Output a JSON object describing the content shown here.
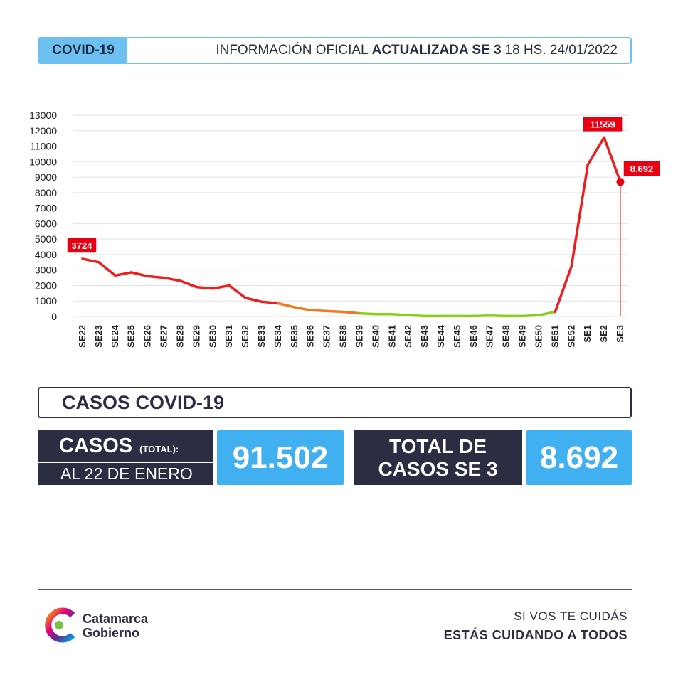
{
  "header": {
    "tag": "COVID-19",
    "text_light_1": "INFORMACIÓN OFICIAL",
    "text_bold": "ACTUALIZADA SE 3",
    "text_light_2": "18 HS. 24/01/2022"
  },
  "chart_data": {
    "type": "line",
    "title": "",
    "xlabel": "",
    "ylabel": "",
    "ylim": [
      0,
      13000
    ],
    "yticks": [
      0,
      1000,
      2000,
      3000,
      4000,
      5000,
      6000,
      7000,
      8000,
      9000,
      10000,
      11000,
      12000,
      13000
    ],
    "grid": true,
    "categories": [
      "SE22",
      "SE23",
      "SE24",
      "SE25",
      "SE26",
      "SE27",
      "SE28",
      "SE29",
      "SE30",
      "SE31",
      "SE32",
      "SE33",
      "SE34",
      "SE35",
      "SE36",
      "SE37",
      "SE38",
      "SE39",
      "SE40",
      "SE41",
      "SE42",
      "SE43",
      "SE44",
      "SE45",
      "SE46",
      "SE47",
      "SE48",
      "SE49",
      "SE50",
      "SE51",
      "SE52",
      "SE1",
      "SE2",
      "SE3"
    ],
    "values": [
      3724,
      3500,
      2650,
      2850,
      2600,
      2500,
      2300,
      1900,
      1800,
      2000,
      1200,
      950,
      850,
      600,
      400,
      350,
      300,
      200,
      150,
      150,
      80,
      30,
      30,
      30,
      30,
      60,
      30,
      30,
      80,
      300,
      3250,
      9800,
      11559,
      8692
    ],
    "annotations": [
      {
        "category": "SE22",
        "label": "3724"
      },
      {
        "category": "SE2",
        "label": "11559"
      },
      {
        "category": "SE3",
        "label": "8.692"
      }
    ],
    "colors": {
      "high": "#f01d1d",
      "mid": "#f07a1d",
      "low": "#8ccc1a",
      "grid": "#e2e2e2",
      "callout": "#e60012"
    }
  },
  "section": {
    "title": "CASOS COVID-19"
  },
  "stats": {
    "casos_label": "CASOS",
    "casos_sub": "(TOTAL):",
    "casos_date": "AL 22 DE ENERO",
    "casos_value": "91.502",
    "total_label_1": "TOTAL DE",
    "total_label_2": "CASOS SE 3",
    "total_value": "8.692"
  },
  "footer": {
    "logo_line1": "Catamarca",
    "logo_line2": "Gobierno",
    "slogan_1": "SI VOS TE CUIDÁS",
    "slogan_2": "ESTÁS CUIDANDO A TODOS"
  }
}
